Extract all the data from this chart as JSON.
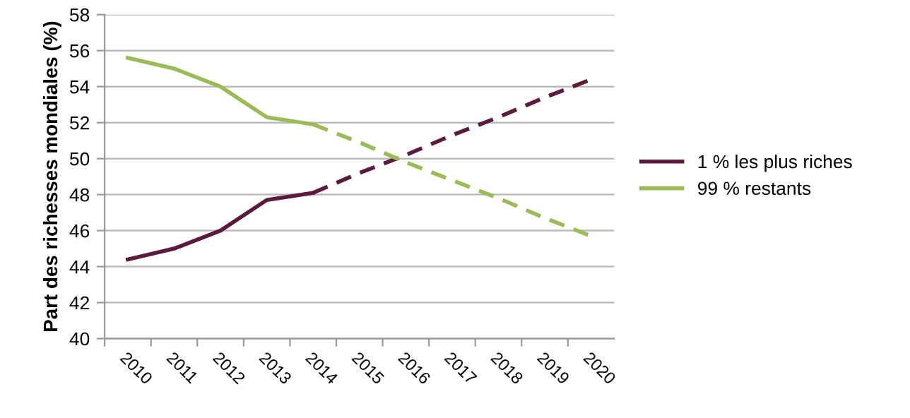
{
  "chart_data": {
    "type": "line",
    "ylabel": "Part des richesses mondiales (%)",
    "categories": [
      "2010",
      "2011",
      "2012",
      "2013",
      "2014",
      "2015",
      "2016",
      "2017",
      "2018",
      "2019",
      "2020"
    ],
    "series": [
      {
        "name": "1 % les plus riches",
        "color": "#5c1a3d",
        "line_style": "solid",
        "values": [
          44.4,
          45.0,
          46.0,
          47.7,
          48.1,
          null,
          null,
          null,
          null,
          null,
          null
        ]
      },
      {
        "name": "99 % restants",
        "color": "#9bbb59",
        "line_style": "solid",
        "values": [
          55.6,
          55.0,
          54.0,
          52.3,
          51.9,
          null,
          null,
          null,
          null,
          null,
          null
        ]
      },
      {
        "color": "#5c1a3d",
        "line_style": "dashed",
        "values": [
          null,
          null,
          null,
          null,
          48.1,
          49.2,
          50.2,
          51.3,
          52.3,
          53.4,
          54.4
        ]
      },
      {
        "color": "#9bbb59",
        "line_style": "dashed",
        "values": [
          null,
          null,
          null,
          null,
          51.9,
          50.9,
          49.8,
          48.8,
          47.8,
          46.7,
          45.7
        ]
      }
    ],
    "ylim": [
      40,
      58
    ],
    "yticks": [
      40,
      42,
      44,
      46,
      48,
      50,
      52,
      54,
      56,
      58
    ],
    "grid": "y",
    "legend": "right",
    "marker": "none"
  }
}
